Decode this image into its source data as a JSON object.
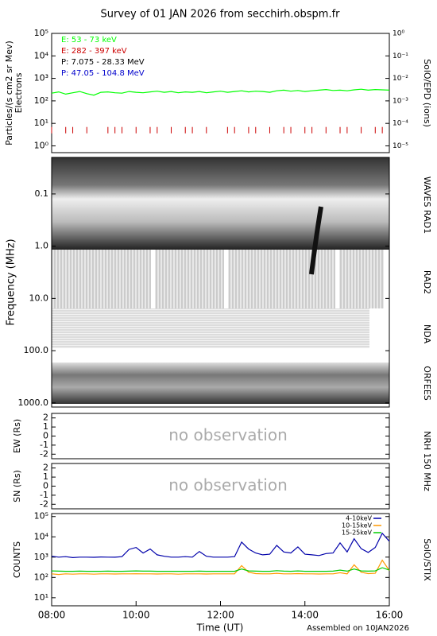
{
  "title": "Survey of 01 JAN 2026 from secchirh.obspm.fr",
  "footer": "Assembled on 10JAN2026",
  "nrh_label": "NRH 150 MHz",
  "chart_data": [
    {
      "type": "line",
      "log_y": true,
      "ylabel": [
        "Particles/(s cm2 sr Mev)",
        "Electrons"
      ],
      "y2label": "SolO/EPD (ions)",
      "xlim": [
        "08:00",
        "16:00"
      ],
      "ylim": [
        0.5,
        100000
      ],
      "yticks": [
        {
          "value": 1,
          "label": "10⁰"
        },
        {
          "value": 10,
          "label": "10¹"
        },
        {
          "value": 100,
          "label": "10²"
        },
        {
          "value": 1000,
          "label": "10³"
        },
        {
          "value": 10000,
          "label": "10⁴"
        },
        {
          "value": 100000,
          "label": "10⁵"
        }
      ],
      "y2lim": [
        5e-06,
        1
      ],
      "y2ticks": [
        {
          "value": 1e-05,
          "label": "10⁻⁵"
        },
        {
          "value": 0.0001,
          "label": "10⁻⁴"
        },
        {
          "value": 0.001,
          "label": "10⁻³"
        },
        {
          "value": 0.01,
          "label": "10⁻²"
        },
        {
          "value": 0.1,
          "label": "10⁻¹"
        },
        {
          "value": 1,
          "label": "10⁰"
        }
      ],
      "x": [
        "08:00",
        "08:10",
        "08:20",
        "08:30",
        "08:40",
        "08:50",
        "09:00",
        "09:10",
        "09:20",
        "09:30",
        "09:40",
        "09:50",
        "10:00",
        "10:10",
        "10:20",
        "10:30",
        "10:40",
        "10:50",
        "11:00",
        "11:10",
        "11:20",
        "11:30",
        "11:40",
        "11:50",
        "12:00",
        "12:10",
        "12:20",
        "12:30",
        "12:40",
        "12:50",
        "13:00",
        "13:10",
        "13:20",
        "13:30",
        "13:40",
        "13:50",
        "14:00",
        "14:10",
        "14:20",
        "14:30",
        "14:40",
        "14:50",
        "15:00",
        "15:10",
        "15:20",
        "15:30",
        "15:40",
        "15:50",
        "16:00"
      ],
      "series": [
        {
          "name": "E: 53 - 73 keV",
          "color": "#00ff00",
          "values": [
            220,
            250,
            200,
            230,
            260,
            210,
            180,
            240,
            250,
            230,
            220,
            260,
            240,
            230,
            250,
            270,
            240,
            260,
            230,
            250,
            240,
            260,
            230,
            250,
            270,
            240,
            260,
            280,
            250,
            270,
            260,
            240,
            280,
            300,
            270,
            290,
            260,
            280,
            300,
            320,
            290,
            300,
            280,
            310,
            330,
            300,
            320,
            310,
            300
          ]
        },
        {
          "name": "E: 282 - 397 keV",
          "color": "#cc0000",
          "marker": "tick",
          "values": [
            5,
            null,
            5,
            5,
            null,
            5,
            null,
            null,
            5,
            5,
            5,
            null,
            5,
            null,
            5,
            5,
            null,
            5,
            null,
            5,
            5,
            null,
            5,
            null,
            null,
            5,
            5,
            null,
            5,
            5,
            null,
            5,
            null,
            5,
            5,
            null,
            5,
            5,
            null,
            5,
            null,
            5,
            5,
            null,
            5,
            null,
            5,
            5,
            null
          ]
        },
        {
          "name": "P: 7.075 - 28.33 MeV",
          "color": "#000000"
        },
        {
          "name": "P: 47.05 - 104.8 MeV",
          "color": "#0000cc"
        }
      ]
    },
    {
      "type": "spectrogram",
      "log_y": true,
      "inverted_y": true,
      "ylabel": "Frequency (MHz)",
      "ylim": [
        0.02,
        1200
      ],
      "yticks": [
        {
          "value": 0.1,
          "label": "0.1"
        },
        {
          "value": 1,
          "label": "1.0"
        },
        {
          "value": 10,
          "label": "10.0"
        },
        {
          "value": 100,
          "label": "100.0"
        },
        {
          "value": 1000,
          "label": "1000.0"
        }
      ],
      "sections": [
        "WAVES RAD1",
        "RAD2",
        "NDA",
        "ORFEES"
      ]
    },
    {
      "type": "line",
      "ylabel": "EW (Rs)",
      "annotation": "no observation",
      "ylim": [
        -2.5,
        2.5
      ],
      "yticks": [
        -2,
        -1,
        0,
        1,
        2
      ]
    },
    {
      "type": "line",
      "ylabel": "SN (Rs)",
      "annotation": "no observation",
      "ylim": [
        -2.5,
        2.5
      ],
      "yticks": [
        -2,
        -1,
        0,
        1,
        2
      ]
    },
    {
      "type": "line",
      "log_y": true,
      "ylabel": "COUNTS",
      "y2label": "SolO/STIX",
      "xlabel": "Time (UT)",
      "xlim": [
        "08:00",
        "16:00"
      ],
      "xticks": [
        "08:00",
        "10:00",
        "12:00",
        "14:00",
        "16:00"
      ],
      "ylim": [
        4,
        140000
      ],
      "yticks": [
        {
          "value": 10,
          "label": "10¹"
        },
        {
          "value": 100,
          "label": "10²"
        },
        {
          "value": 1000,
          "label": "10³"
        },
        {
          "value": 10000,
          "label": "10⁴"
        },
        {
          "value": 100000,
          "label": "10⁵"
        }
      ],
      "x": [
        "08:00",
        "08:10",
        "08:20",
        "08:30",
        "08:40",
        "08:50",
        "09:00",
        "09:10",
        "09:20",
        "09:30",
        "09:40",
        "09:50",
        "10:00",
        "10:10",
        "10:20",
        "10:30",
        "10:40",
        "10:50",
        "11:00",
        "11:10",
        "11:20",
        "11:30",
        "11:40",
        "11:50",
        "12:00",
        "12:10",
        "12:20",
        "12:30",
        "12:40",
        "12:50",
        "13:00",
        "13:10",
        "13:20",
        "13:30",
        "13:40",
        "13:50",
        "14:00",
        "14:10",
        "14:20",
        "14:30",
        "14:40",
        "14:50",
        "15:00",
        "15:10",
        "15:20",
        "15:30",
        "15:40",
        "15:50",
        "16:00"
      ],
      "series": [
        {
          "name": "4-10keV",
          "color": "#0000aa",
          "values": [
            1100,
            1000,
            1050,
            950,
            1000,
            1000,
            980,
            1020,
            1000,
            990,
            1050,
            2400,
            3000,
            1600,
            2500,
            1300,
            1100,
            1000,
            1000,
            1050,
            1000,
            1900,
            1100,
            1000,
            1000,
            1000,
            1050,
            5500,
            2500,
            1600,
            1300,
            1400,
            3800,
            1800,
            1600,
            3200,
            1400,
            1300,
            1200,
            1500,
            1600,
            5000,
            1800,
            8000,
            2600,
            1700,
            3000,
            15000,
            6000
          ]
        },
        {
          "name": "10-15keV",
          "color": "#ff9900",
          "values": [
            150,
            140,
            150,
            145,
            150,
            150,
            145,
            150,
            150,
            148,
            150,
            150,
            152,
            150,
            150,
            148,
            150,
            150,
            145,
            150,
            150,
            150,
            148,
            150,
            150,
            150,
            150,
            380,
            180,
            155,
            150,
            150,
            160,
            150,
            150,
            155,
            150,
            150,
            148,
            150,
            150,
            170,
            150,
            420,
            180,
            155,
            160,
            700,
            220
          ]
        },
        {
          "name": "15-25keV",
          "color": "#00cc00",
          "values": [
            210,
            205,
            200,
            200,
            205,
            200,
            200,
            200,
            205,
            200,
            200,
            205,
            210,
            205,
            205,
            200,
            200,
            200,
            200,
            200,
            200,
            205,
            200,
            200,
            200,
            200,
            200,
            260,
            210,
            205,
            200,
            200,
            215,
            205,
            200,
            210,
            200,
            200,
            200,
            200,
            205,
            230,
            205,
            260,
            210,
            205,
            210,
            300,
            230
          ]
        }
      ]
    }
  ]
}
